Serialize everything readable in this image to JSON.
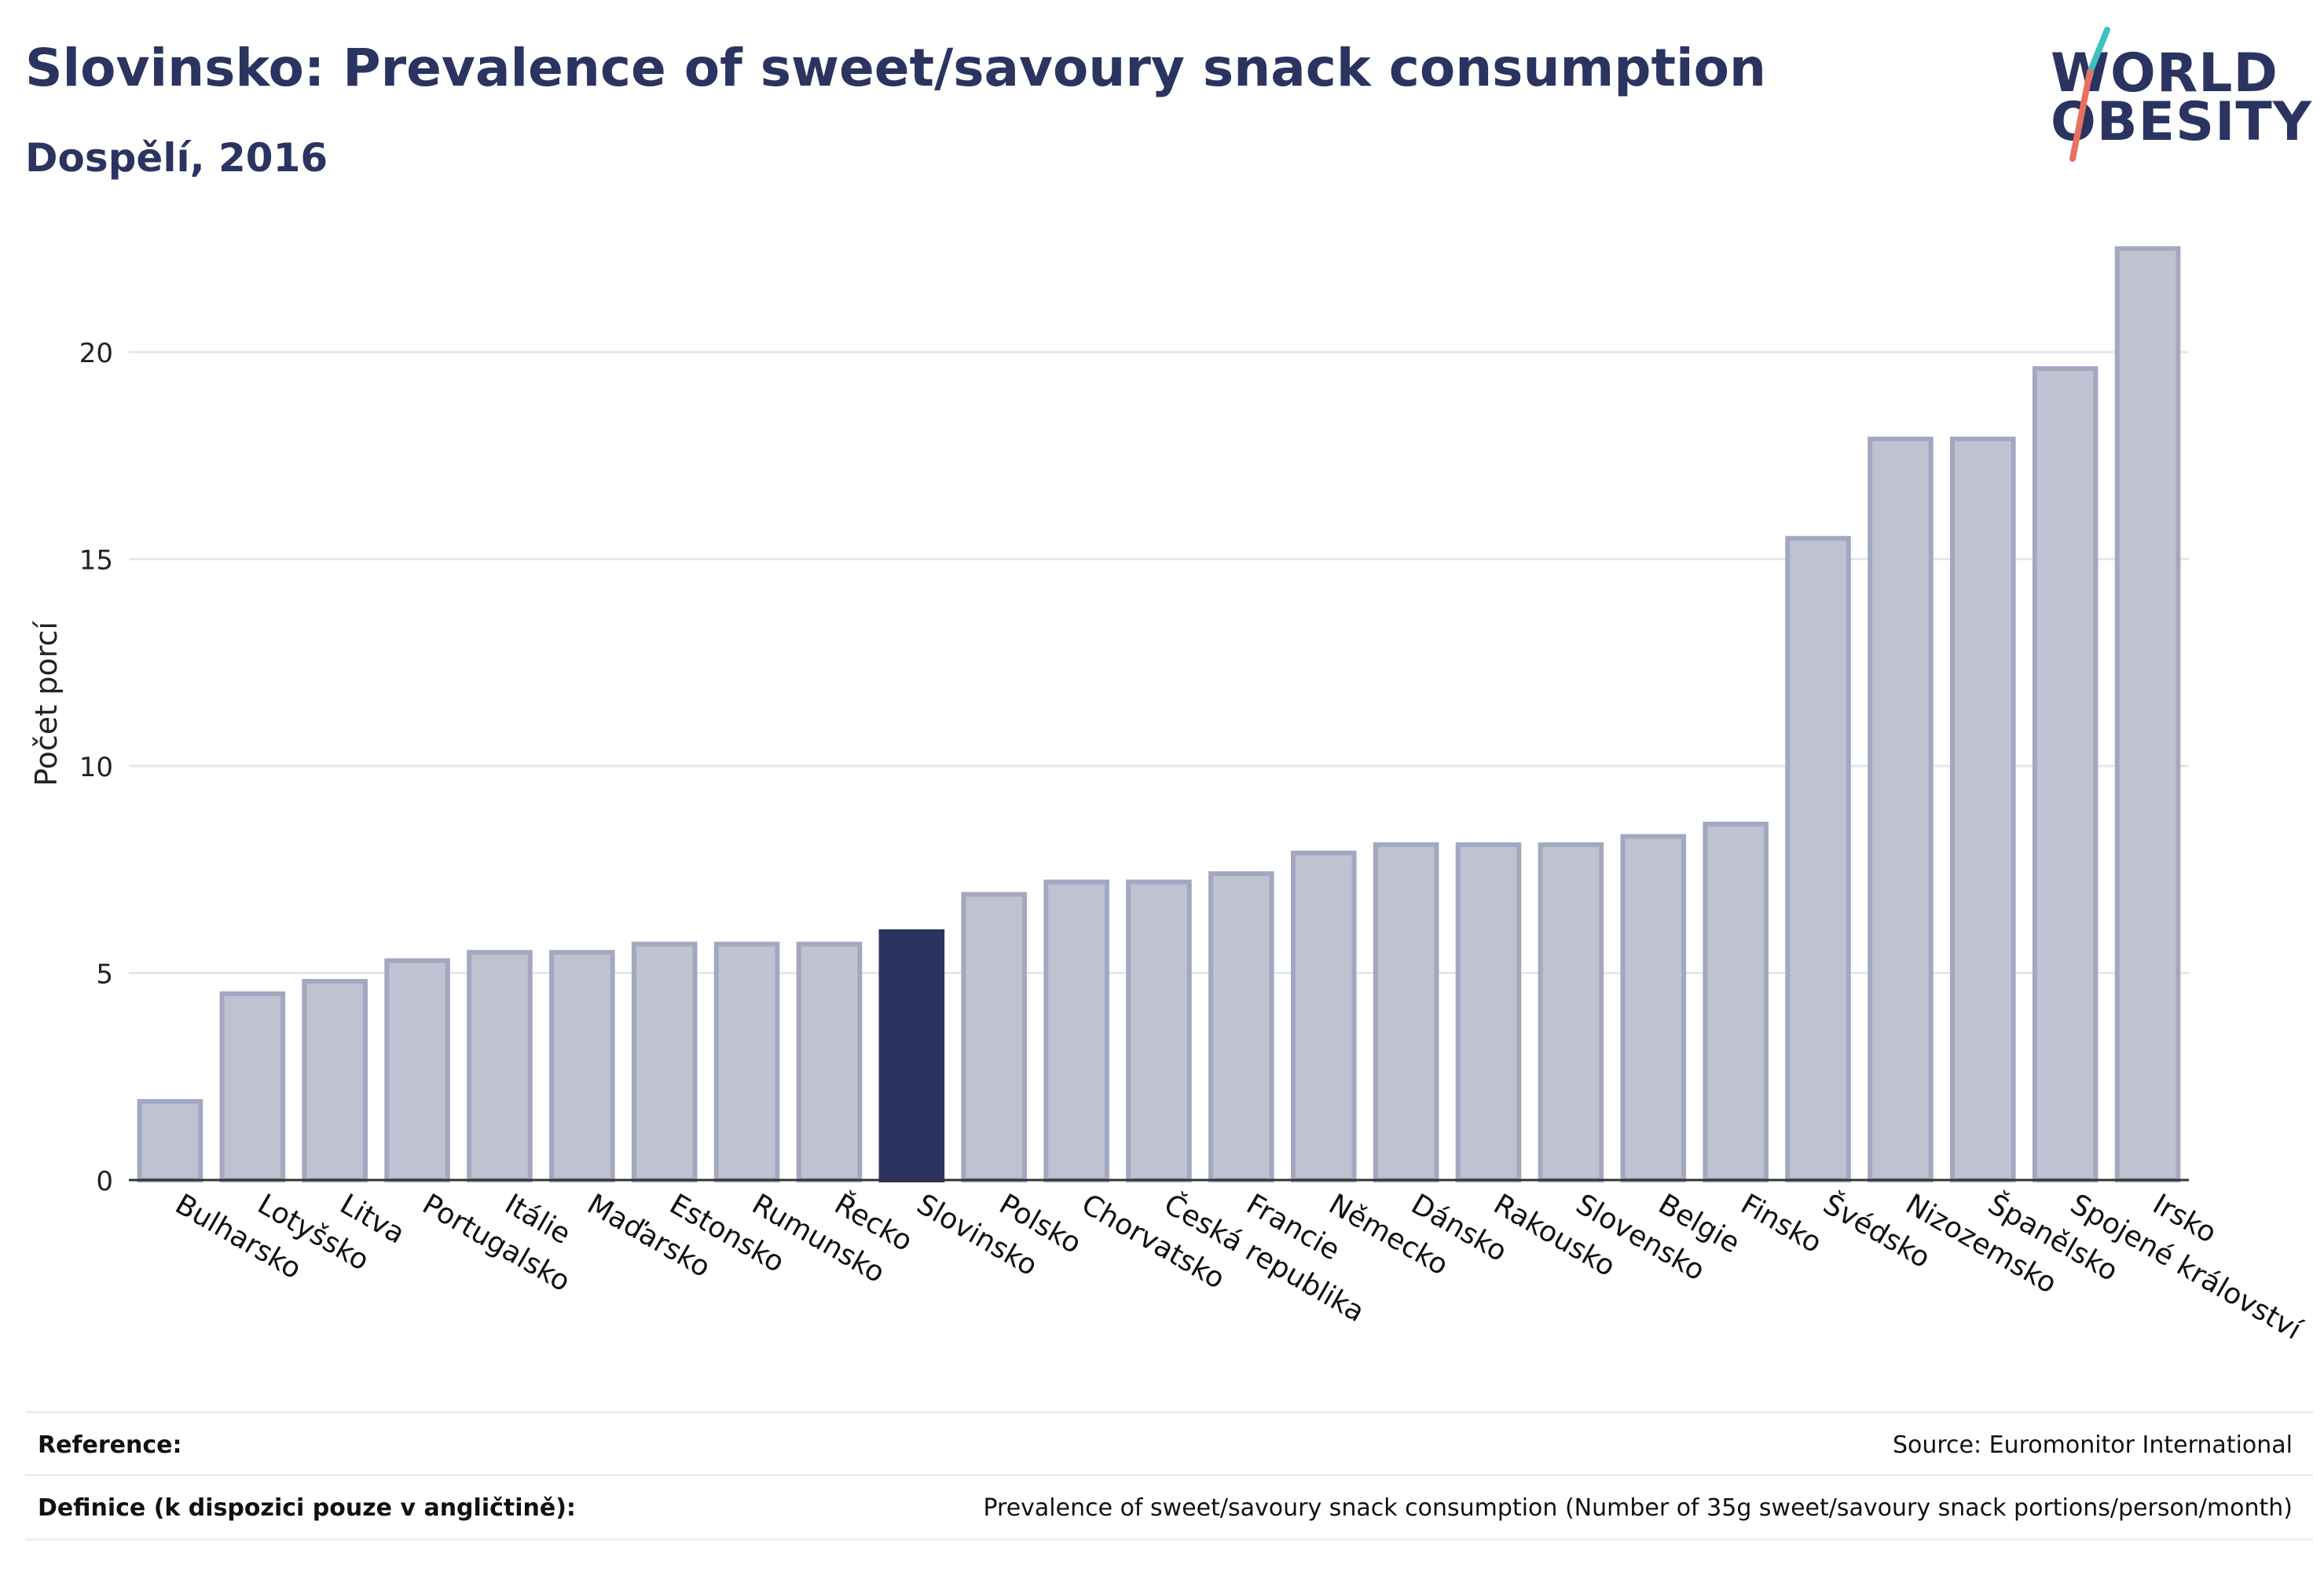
{
  "header": {
    "title": "Slovinsko: Prevalence of sweet/savoury snack consumption",
    "subtitle": "Dospělí, 2016"
  },
  "logo": {
    "line1": "WORLD",
    "line2": "OBESITY",
    "accent_teal": "#3cc0c0",
    "accent_red": "#e8705f"
  },
  "chart_data": {
    "type": "bar",
    "ylabel": "Počet porcí",
    "xlabel": "",
    "ylim": [
      0,
      23
    ],
    "yticks": [
      0,
      5,
      10,
      15,
      20
    ],
    "grid": true,
    "categories": [
      "Bulharsko",
      "Lotyšsko",
      "Litva",
      "Portugalsko",
      "Itálie",
      "Maďarsko",
      "Estonsko",
      "Rumunsko",
      "Řecko",
      "Slovinsko",
      "Polsko",
      "Chorvatsko",
      "Česká republika",
      "Francie",
      "Německo",
      "Dánsko",
      "Rakousko",
      "Slovensko",
      "Belgie",
      "Finsko",
      "Švédsko",
      "Nizozemsko",
      "Španělsko",
      "Spojené království",
      "Irsko"
    ],
    "values": [
      1.9,
      4.5,
      4.8,
      5.3,
      5.5,
      5.5,
      5.7,
      5.7,
      5.7,
      6.0,
      6.9,
      7.2,
      7.2,
      7.4,
      7.9,
      8.1,
      8.1,
      8.1,
      8.3,
      8.6,
      15.5,
      17.9,
      17.9,
      19.6,
      22.5
    ],
    "highlight": "Slovinsko",
    "colors": {
      "bar": "#bfc2d0",
      "bar_border": "#a3a8c0",
      "highlight": "#2b3460",
      "grid": "#e6e7ee",
      "axis": "#333333"
    }
  },
  "footer": {
    "reference_label": "Reference:",
    "reference_value": "Source: Euromonitor International",
    "definition_label": "Definice (k dispozici pouze v angličtině):",
    "definition_value": "Prevalence of sweet/savoury snack consumption (Number of 35g sweet/savoury snack portions/person/month)"
  }
}
